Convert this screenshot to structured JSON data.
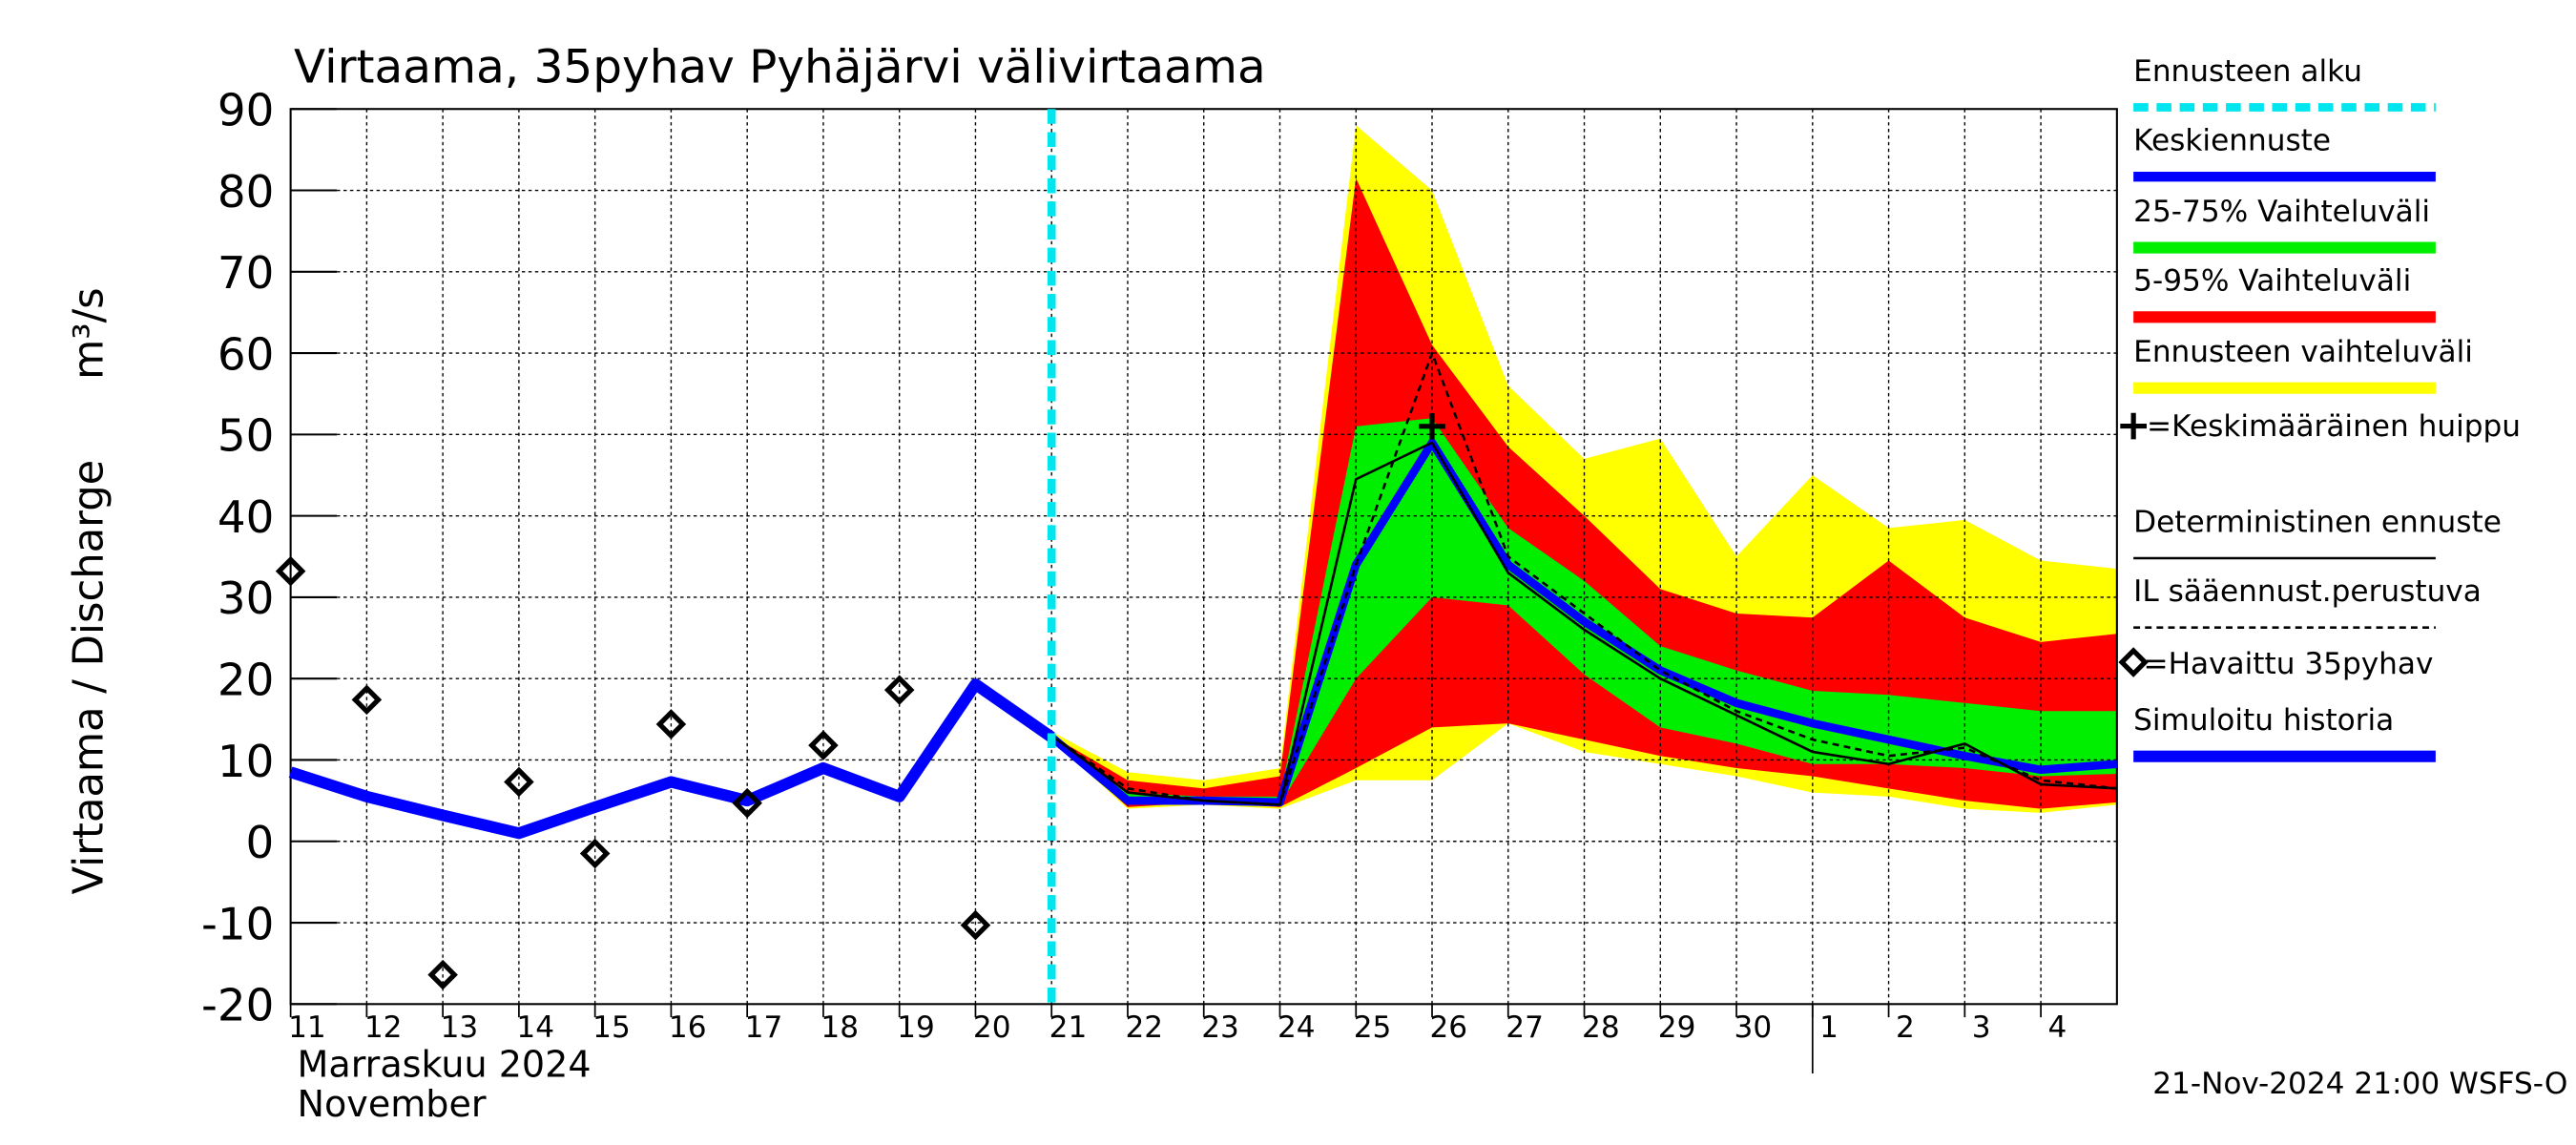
{
  "chart_data": {
    "type": "line",
    "title": "Virtaama, 35pyhav Pyhäjärvi välivirtaama",
    "y_label": "Virtaama / Discharge",
    "y_unit": "m³/s",
    "month_label": "Marraskuu 2024",
    "month_label_en": "November",
    "footer": "21-Nov-2024 21:00 WSFS-O",
    "xlim": [
      0,
      24
    ],
    "xticks": [
      {
        "value": 0,
        "label": "11"
      },
      {
        "value": 1,
        "label": "12"
      },
      {
        "value": 2,
        "label": "13"
      },
      {
        "value": 3,
        "label": "14"
      },
      {
        "value": 4,
        "label": "15"
      },
      {
        "value": 5,
        "label": "16"
      },
      {
        "value": 6,
        "label": "17"
      },
      {
        "value": 7,
        "label": "18"
      },
      {
        "value": 8,
        "label": "19"
      },
      {
        "value": 9,
        "label": "20"
      },
      {
        "value": 10,
        "label": "21"
      },
      {
        "value": 11,
        "label": "22"
      },
      {
        "value": 12,
        "label": "23"
      },
      {
        "value": 13,
        "label": "24"
      },
      {
        "value": 14,
        "label": "25"
      },
      {
        "value": 15,
        "label": "26"
      },
      {
        "value": 16,
        "label": "27"
      },
      {
        "value": 17,
        "label": "28"
      },
      {
        "value": 18,
        "label": "29"
      },
      {
        "value": 19,
        "label": "30"
      },
      {
        "value": 20,
        "label": "1"
      },
      {
        "value": 21,
        "label": "2"
      },
      {
        "value": 22,
        "label": "3"
      },
      {
        "value": 23,
        "label": "4"
      }
    ],
    "month_boundary": 20,
    "ylim": [
      -20,
      90
    ],
    "yticks": [
      -20,
      -10,
      0,
      10,
      20,
      30,
      40,
      50,
      60,
      70,
      80,
      90
    ],
    "grid": true,
    "forecast_start": {
      "name": "Ennusteen alku",
      "x": 10,
      "color": "#00e5ee"
    },
    "bands": [
      {
        "name": "Ennusteen vaihteluväli",
        "color": "#ffff00",
        "x": [
          10,
          11,
          12,
          13,
          14,
          15,
          16,
          17,
          18,
          19,
          20,
          21,
          22,
          23,
          24
        ],
        "upper": [
          13.5,
          8.5,
          7.5,
          9,
          88,
          80,
          56,
          47,
          49.5,
          35,
          45,
          38.5,
          39.5,
          34.5,
          33.5
        ],
        "lower": [
          12.5,
          4,
          4.5,
          4,
          7.5,
          7.5,
          14.5,
          11,
          9.5,
          8,
          6,
          5.5,
          4,
          3.5,
          4.5
        ]
      },
      {
        "name": "5-95% Vaihteluväli",
        "color": "#ff0000",
        "x": [
          10,
          11,
          12,
          13,
          14,
          15,
          16,
          17,
          18,
          19,
          20,
          21,
          22,
          23,
          24
        ],
        "upper": [
          13,
          7.5,
          6.5,
          8,
          81.5,
          61,
          48.5,
          40,
          31,
          28,
          27.5,
          34.5,
          27.5,
          24.5,
          25.5
        ],
        "lower": [
          12.8,
          4.2,
          4.8,
          4.2,
          9,
          14,
          14.5,
          12.5,
          10.5,
          9,
          8,
          6.5,
          5,
          4,
          4.8
        ]
      },
      {
        "name": "25-75% Vaihteluväli",
        "color": "#00ee00",
        "x": [
          10,
          11,
          12,
          13,
          14,
          15,
          16,
          17,
          18,
          19,
          20,
          21,
          22,
          23,
          24
        ],
        "upper": [
          13,
          6,
          5.5,
          5.5,
          51,
          52,
          38.5,
          32,
          24,
          21,
          18.5,
          18,
          17,
          16,
          16
        ],
        "lower": [
          12.8,
          5,
          5,
          4.5,
          20,
          30,
          29,
          20.5,
          14,
          12,
          9.5,
          9.5,
          9,
          8,
          8.3
        ]
      }
    ],
    "series": [
      {
        "name": "Simuloitu historia",
        "color": "#0000ff",
        "width": 7,
        "dash": null,
        "x": [
          0,
          1,
          2,
          3,
          4,
          5,
          6,
          7,
          8,
          9,
          10
        ],
        "values": [
          8.5,
          5.5,
          3.2,
          1,
          4.2,
          7.3,
          5,
          9,
          5.5,
          19.3,
          12.8
        ]
      },
      {
        "name": "Keskiennuste",
        "color": "#0000ff",
        "width": 5,
        "dash": null,
        "x": [
          10,
          11,
          12,
          13,
          14,
          15,
          16,
          17,
          18,
          19,
          20,
          21,
          22,
          23,
          24
        ],
        "values": [
          12.8,
          5,
          5,
          4.8,
          34,
          49,
          34,
          27,
          21,
          17,
          14.5,
          12.5,
          10.5,
          8.8,
          9.5
        ]
      },
      {
        "name": "Deterministinen ennuste",
        "color": "#000000",
        "width": 1.5,
        "dash": null,
        "x": [
          10,
          11,
          12,
          13,
          14,
          15,
          16,
          17,
          18,
          19,
          20,
          21,
          22,
          23,
          24
        ],
        "values": [
          13,
          6,
          5,
          4.5,
          44.5,
          49,
          33,
          26,
          20,
          15.5,
          11,
          9.5,
          12,
          7,
          6.5
        ]
      },
      {
        "name": "IL sääennust.perustuva",
        "color": "#000000",
        "width": 1.5,
        "dash": "4,3",
        "x": [
          10,
          11,
          12,
          13,
          14,
          15,
          16,
          17,
          18,
          19,
          20,
          21,
          22,
          23,
          24
        ],
        "values": [
          13,
          6.5,
          5,
          4.5,
          34,
          60,
          35,
          28,
          21,
          16,
          12.5,
          10.5,
          11.5,
          7.5,
          6.5
        ]
      }
    ],
    "observations": {
      "name": "=Havaittu 35pyhav",
      "x": [
        0,
        1,
        2,
        3,
        4,
        5,
        6,
        7,
        8,
        9
      ],
      "values": [
        33.2,
        17.4,
        -16.4,
        7.3,
        -1.5,
        14.4,
        4.7,
        11.8,
        18.6,
        -10.3
      ]
    },
    "peak": {
      "name": "=Keskimääräinen huippu",
      "x": 15,
      "value": 51
    }
  }
}
